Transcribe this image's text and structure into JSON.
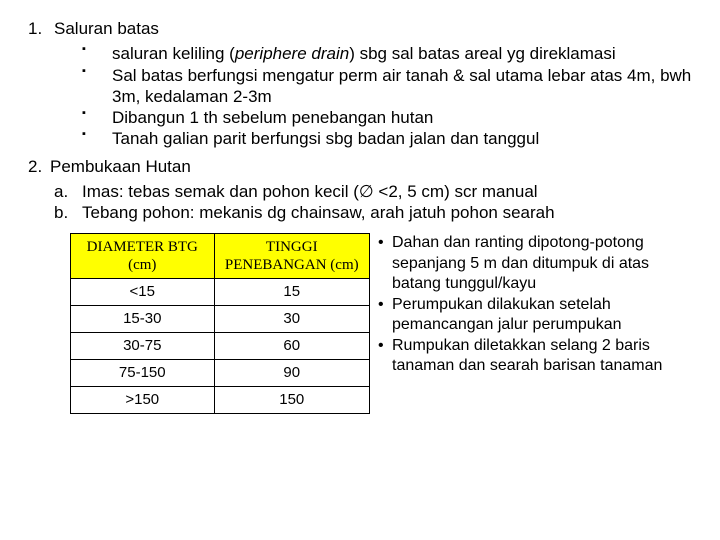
{
  "sec1": {
    "num": "1.",
    "title": "Saluran batas",
    "items": [
      "saluran keliling (<i>periphere drain</i>) sbg sal batas areal yg direklamasi",
      "Sal batas berfungsi mengatur perm air tanah & sal utama lebar atas 4m, bwh 3m, kedalaman 2-3m",
      "Dibangun 1 th sebelum penebangan hutan",
      "Tanah galian parit berfungsi sbg badan jalan dan tanggul"
    ]
  },
  "sec2": {
    "num": "2.",
    "title": "Pembukaan Hutan",
    "items": [
      {
        "lab": "a.",
        "txt": "Imas: tebas semak dan pohon kecil (∅ <2, 5 cm) scr manual"
      },
      {
        "lab": "b.",
        "txt": "Tebang pohon: mekanis dg chainsaw, arah jatuh pohon searah"
      }
    ]
  },
  "table": {
    "headers": [
      "DIAMETER BTG (cm)",
      "TINGGI PENEBANGAN (cm)"
    ],
    "rows": [
      [
        "<15",
        "15"
      ],
      [
        "15-30",
        "30"
      ],
      [
        "30-75",
        "60"
      ],
      [
        "75-150",
        "90"
      ],
      [
        ">150",
        "150"
      ]
    ],
    "header_bg": "#ffff00",
    "border_color": "#000000"
  },
  "rightBullets": [
    "Dahan dan ranting dipotong-potong sepanjang 5 m dan ditumpuk di atas batang tunggul/kayu",
    "Perumpukan dilakukan setelah pemancangan jalur perumpukan",
    "Rumpukan diletakkan selang 2 baris tanaman dan searah barisan tanaman"
  ]
}
